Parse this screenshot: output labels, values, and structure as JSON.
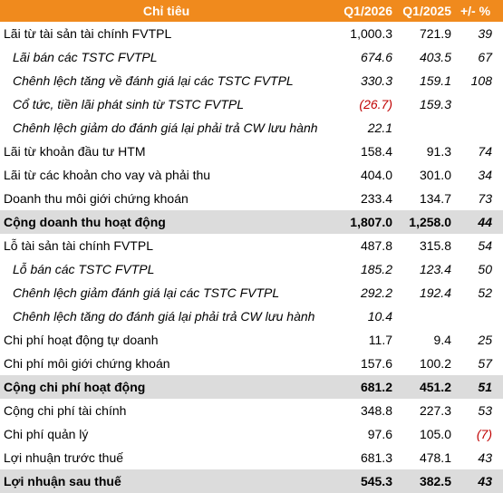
{
  "header": {
    "label": "Chỉ tiêu",
    "col_a": "Q1/2026",
    "col_b": "Q1/2025",
    "col_c": "+/- %"
  },
  "rows": [
    {
      "label": "Lãi từ tài sản tài chính FVTPL",
      "a": "1,000.3",
      "b": "721.9",
      "c": "39",
      "type": "normal"
    },
    {
      "label": "Lãi bán các TSTC FVTPL",
      "a": "674.6",
      "b": "403.5",
      "c": "67",
      "type": "sub"
    },
    {
      "label": "Chênh lệch tăng về đánh giá lại các TSTC FVTPL",
      "a": "330.3",
      "b": "159.1",
      "c": "108",
      "type": "sub"
    },
    {
      "label": "Cổ tức, tiền lãi phát sinh từ TSTC FVTPL",
      "a": "(26.7)",
      "b": "159.3",
      "c": "",
      "type": "sub",
      "a_neg": true
    },
    {
      "label": "Chênh lệch giảm do đánh giá lại phải trả CW lưu hành",
      "a": "22.1",
      "b": "",
      "c": "",
      "type": "sub"
    },
    {
      "label": "Lãi từ khoản đầu tư HTM",
      "a": "158.4",
      "b": "91.3",
      "c": "74",
      "type": "normal"
    },
    {
      "label": "Lãi từ các khoản cho vay và phải thu",
      "a": "404.0",
      "b": "301.0",
      "c": "34",
      "type": "normal"
    },
    {
      "label": "Doanh thu môi giới chứng khoán",
      "a": "233.4",
      "b": "134.7",
      "c": "73",
      "type": "normal"
    },
    {
      "label": "Cộng doanh thu hoạt động",
      "a": "1,807.0",
      "b": "1,258.0",
      "c": "44",
      "type": "total"
    },
    {
      "label": "Lỗ tài sản tài chính FVTPL",
      "a": "487.8",
      "b": "315.8",
      "c": "54",
      "type": "normal"
    },
    {
      "label": "Lỗ bán các TSTC FVTPL",
      "a": "185.2",
      "b": "123.4",
      "c": "50",
      "type": "sub"
    },
    {
      "label": "Chênh lệch giảm đánh giá lại các TSTC FVTPL",
      "a": "292.2",
      "b": "192.4",
      "c": "52",
      "type": "sub"
    },
    {
      "label": "Chênh lệch tăng do đánh giá lại phải trả CW lưu hành",
      "a": "10.4",
      "b": "",
      "c": "",
      "type": "sub"
    },
    {
      "label": "Chi phí hoạt động tự doanh",
      "a": "11.7",
      "b": "9.4",
      "c": "25",
      "type": "normal"
    },
    {
      "label": "Chi phí môi giới chứng khoán",
      "a": "157.6",
      "b": "100.2",
      "c": "57",
      "type": "normal"
    },
    {
      "label": "Cộng chi phí hoạt động",
      "a": "681.2",
      "b": "451.2",
      "c": "51",
      "type": "total"
    },
    {
      "label": "Cộng chi phí tài chính",
      "a": "348.8",
      "b": "227.3",
      "c": "53",
      "type": "normal"
    },
    {
      "label": "Chi phí quản lý",
      "a": "97.6",
      "b": "105.0",
      "c": "(7)",
      "type": "normal",
      "c_neg": true
    },
    {
      "label": "Lợi nhuận trước thuế",
      "a": "681.3",
      "b": "478.1",
      "c": "43",
      "type": "normal"
    },
    {
      "label": "Lợi nhuận sau thuế",
      "a": "545.3",
      "b": "382.5",
      "c": "43",
      "type": "total"
    }
  ],
  "colors": {
    "header_bg": "#f08a1d",
    "total_bg": "#dcdcdc",
    "negative": "#c00000"
  }
}
